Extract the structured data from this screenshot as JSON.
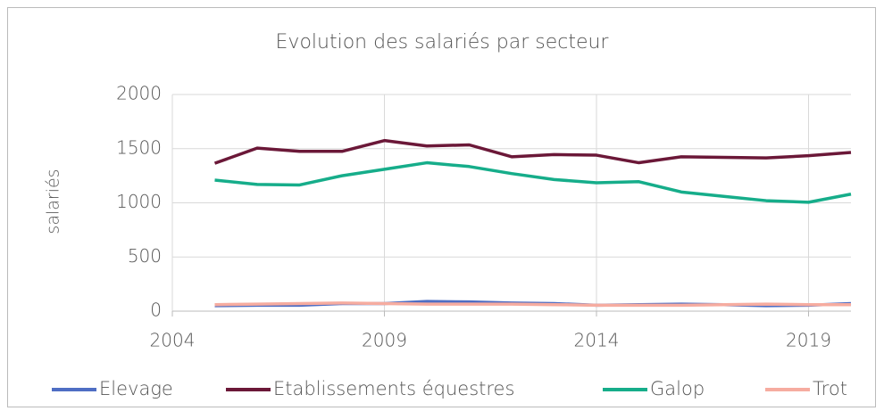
{
  "chart_data": {
    "type": "line",
    "title": "Evolution des salariés par secteur",
    "y_label": "salariés",
    "x": [
      2005,
      2006,
      2007,
      2008,
      2009,
      2010,
      2011,
      2012,
      2013,
      2014,
      2015,
      2016,
      2017,
      2018,
      2019,
      2020
    ],
    "series": [
      {
        "name": "Elevage",
        "color": "#4f6ec4",
        "values": [
          50,
          55,
          55,
          70,
          70,
          90,
          85,
          75,
          70,
          55,
          60,
          65,
          60,
          50,
          55,
          70
        ]
      },
      {
        "name": "Etablissements équestres",
        "color": "#6b1838",
        "values": [
          1365,
          1505,
          1475,
          1475,
          1575,
          1525,
          1535,
          1425,
          1445,
          1440,
          1370,
          1425,
          1420,
          1415,
          1435,
          1465
        ]
      },
      {
        "name": "Galop",
        "color": "#16ad8a",
        "values": [
          1210,
          1170,
          1165,
          1250,
          1310,
          1370,
          1335,
          1270,
          1215,
          1185,
          1195,
          1100,
          1060,
          1020,
          1005,
          1080
        ]
      },
      {
        "name": "Trot",
        "color": "#f6aca0",
        "values": [
          60,
          65,
          70,
          75,
          70,
          65,
          65,
          65,
          60,
          55,
          55,
          55,
          60,
          65,
          60,
          60
        ]
      }
    ],
    "xlim": [
      2004,
      2020
    ],
    "xticks": [
      2004,
      2009,
      2014,
      2019
    ],
    "ylim": [
      0,
      2000
    ],
    "yticks": [
      0,
      500,
      1000,
      1500,
      2000
    ],
    "grid": true,
    "legend": "bottom"
  }
}
